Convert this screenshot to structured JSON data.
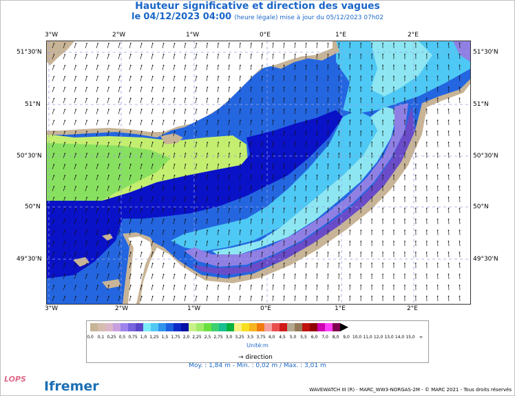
{
  "title": "Hauteur significative et direction des vagues",
  "subtitle": {
    "prefix": "le",
    "date": "04/12/2023 04:00",
    "note": "(heure légale) mise à jour du 05/12/2023 07h02"
  },
  "map": {
    "lon_labels_top": [
      "3°W",
      "2°W",
      "1°W",
      "0°E",
      "1°E",
      "2°E"
    ],
    "lon_labels_bottom": [
      "3°W",
      "2°W",
      "1°W",
      "0°E",
      "1°E",
      "2°E"
    ],
    "lat_labels_left": [
      "51°30'N",
      "51°N",
      "50°30'N",
      "50°N",
      "49°30'N"
    ],
    "lat_labels_right": [
      "51°30'N",
      "51°N",
      "50°30'N",
      "50°N",
      "49°30'N"
    ],
    "land_color": "#c8b496",
    "sea_colors": {
      "very_high": "#0a12c8",
      "high": "#2466e0",
      "medium": "#4ec8f4",
      "low": "#8de6f2",
      "coast1": "#9080e4",
      "coast2": "#6a4cc8",
      "west_green": "#88e060",
      "west_yellowgreen": "#c4ee70"
    }
  },
  "legend": {
    "colors": [
      "#c8b496",
      "#d4bcae",
      "#dcb6c8",
      "#c8a0e0",
      "#9c84ec",
      "#7664dc",
      "#5a46c8",
      "#7cecf8",
      "#52c8f4",
      "#3094ec",
      "#1c60e0",
      "#0c28c8",
      "#0410a4",
      "#c8f088",
      "#a0ec68",
      "#6ae040",
      "#3cd070",
      "#18c090",
      "#08b040",
      "#f8f080",
      "#f8e020",
      "#f8b420",
      "#f07c10",
      "#f4a0a0",
      "#e85050",
      "#d01818",
      "#b4a890",
      "#947858",
      "#c01010",
      "#900000",
      "#d000b0",
      "#ff40ff",
      "#800050",
      "#000000"
    ],
    "ticks": [
      "0,0",
      "0,1",
      "0,25",
      "0,5",
      "0,75",
      "1,0",
      "1,25",
      "1,5",
      "1,75",
      "2,0",
      "2,25",
      "2,5",
      "2,75",
      "3,0",
      "3,25",
      "3,5",
      "3,75",
      "4,0",
      "4,5",
      "5,0",
      "5,5",
      "6,0",
      "7,0",
      "8,0",
      "9,0",
      "10,0",
      "11,0",
      "12,0",
      "13,0",
      "14,0",
      "15,0",
      "∞"
    ],
    "unit": "Unité:m",
    "direction_label": "direction"
  },
  "stats": "Moy. : 1,84 m   -   Min. : 0,02 m / Max. : 3,01 m",
  "footer": "WAVEWATCH III (R) - MARC_WW3-NORGAS-2M - © MARC 2021 - Tous droits réservés",
  "logos": {
    "lops": "LOPS",
    "ifremer": "Ifremer"
  }
}
